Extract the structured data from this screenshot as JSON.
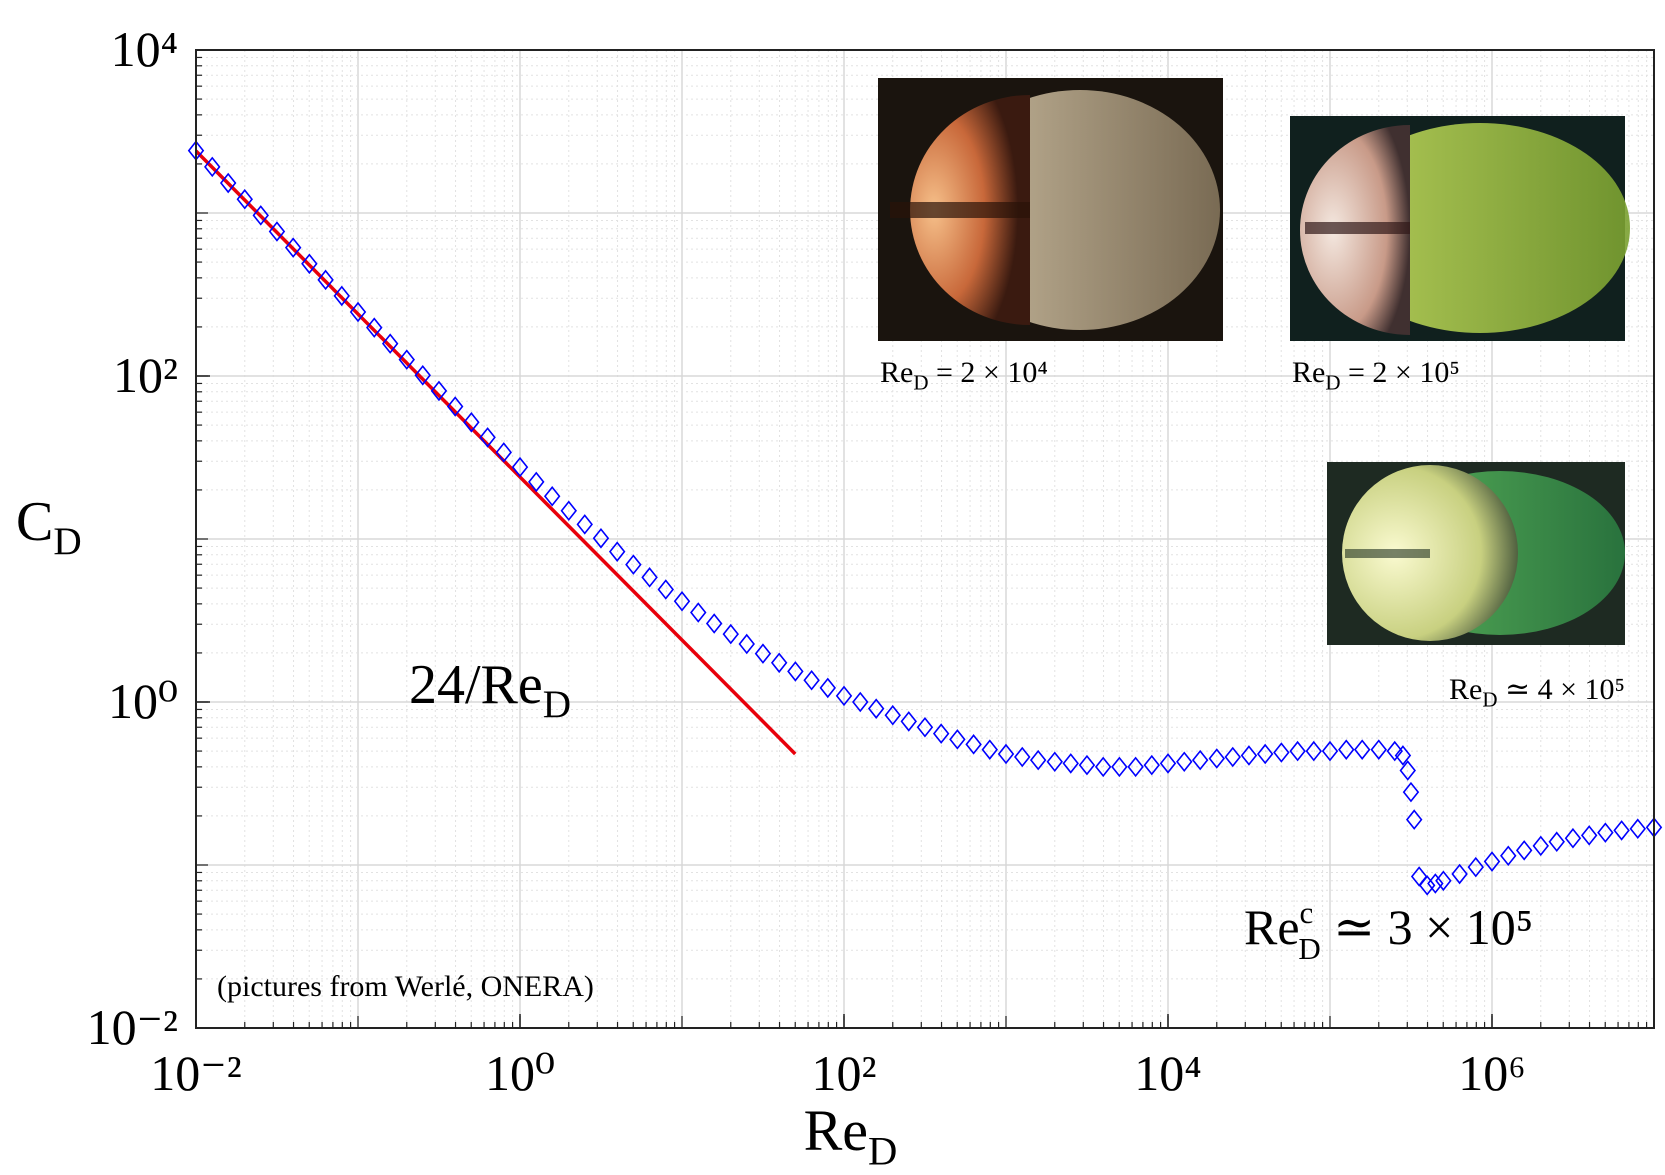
{
  "chart_data": {
    "type": "scatter",
    "x_label": {
      "text": "Re",
      "sub": "D"
    },
    "y_label": {
      "text": "C",
      "sub": "D"
    },
    "xscale": "log",
    "yscale": "log",
    "grid": true,
    "xlim": [
      0.01,
      10000000
    ],
    "ylim": [
      0.01,
      10000
    ],
    "xticks": [
      {
        "value": 0.01,
        "label": "10⁻²"
      },
      {
        "value": 1,
        "label": "10⁰"
      },
      {
        "value": 100,
        "label": "10²"
      },
      {
        "value": 10000,
        "label": "10⁴"
      },
      {
        "value": 1000000,
        "label": "10⁶"
      }
    ],
    "yticks": [
      {
        "value": 0.01,
        "label": "10⁻²"
      },
      {
        "value": 1,
        "label": "10⁰"
      },
      {
        "value": 100,
        "label": "10²"
      },
      {
        "value": 10000,
        "label": "10⁴"
      }
    ],
    "series": [
      {
        "kind": "markers",
        "color": "#0000ff",
        "x": [
          0.01,
          0.0126,
          0.0158,
          0.02,
          0.0251,
          0.0316,
          0.0398,
          0.0501,
          0.0631,
          0.0794,
          0.1,
          0.126,
          0.158,
          0.2,
          0.251,
          0.316,
          0.398,
          0.501,
          0.631,
          0.794,
          1,
          1.26,
          1.58,
          2,
          2.51,
          3.16,
          3.98,
          5.01,
          6.31,
          7.94,
          10,
          12.6,
          15.8,
          20,
          25.1,
          31.6,
          39.8,
          50.1,
          63.1,
          79.4,
          100,
          126,
          158,
          200,
          251,
          316,
          398,
          501,
          631,
          794,
          1000,
          1260,
          1580,
          2000,
          2510,
          3160,
          3980,
          5010,
          6310,
          7940,
          10000,
          12600,
          15800,
          20000,
          25100,
          31600,
          39800,
          50100,
          63100,
          79400,
          100000,
          126000,
          158000,
          200000,
          251000,
          282000,
          302000,
          316000,
          331000,
          355000,
          398000,
          447000,
          501000,
          631000,
          794000,
          1000000,
          1260000,
          1580000,
          2000000,
          2510000,
          3160000,
          3980000,
          5010000,
          6310000,
          7940000,
          10000000
        ],
        "values": [
          2415,
          1919,
          1527,
          1215,
          967,
          770,
          613,
          488,
          389,
          310,
          247,
          198,
          158,
          126,
          101,
          81,
          65,
          52,
          42,
          34,
          27.6,
          22.4,
          18.3,
          14.9,
          12.3,
          10.1,
          8.36,
          6.96,
          5.82,
          4.9,
          4.15,
          3.54,
          3.03,
          2.61,
          2.27,
          1.98,
          1.74,
          1.54,
          1.36,
          1.22,
          1.09,
          1.0,
          0.91,
          0.83,
          0.76,
          0.7,
          0.64,
          0.59,
          0.55,
          0.51,
          0.48,
          0.46,
          0.44,
          0.43,
          0.42,
          0.41,
          0.4,
          0.4,
          0.4,
          0.41,
          0.42,
          0.43,
          0.44,
          0.45,
          0.46,
          0.47,
          0.48,
          0.49,
          0.5,
          0.5,
          0.5,
          0.51,
          0.51,
          0.51,
          0.5,
          0.47,
          0.38,
          0.28,
          0.19,
          0.085,
          0.075,
          0.077,
          0.08,
          0.088,
          0.097,
          0.105,
          0.114,
          0.123,
          0.131,
          0.139,
          0.146,
          0.152,
          0.158,
          0.163,
          0.167,
          0.17
        ]
      },
      {
        "kind": "line",
        "color": "#e8000b",
        "x": [
          0.01,
          50
        ],
        "values": [
          2400,
          0.48
        ]
      }
    ],
    "annotations": [
      {
        "text": "24/Re",
        "sub": "D",
        "color": "#e8000b"
      },
      {
        "text": "Re",
        "sup": "c",
        "sub": "D",
        "rest": " ≃ 3 × 10⁵",
        "color": "#e8000b"
      },
      {
        "text": "(pictures from Werlé, ONERA)"
      }
    ],
    "photos": [
      {
        "caption": {
          "text": "Re",
          "sub": "D",
          "rest": " = 2 × 10⁴"
        }
      },
      {
        "caption": {
          "text": "Re",
          "sub": "D",
          "rest": " = 2 × 10⁵"
        }
      },
      {
        "caption": {
          "text": "Re",
          "sub": "D",
          "rest": " ≃ 4 × 10⁵"
        }
      }
    ]
  }
}
